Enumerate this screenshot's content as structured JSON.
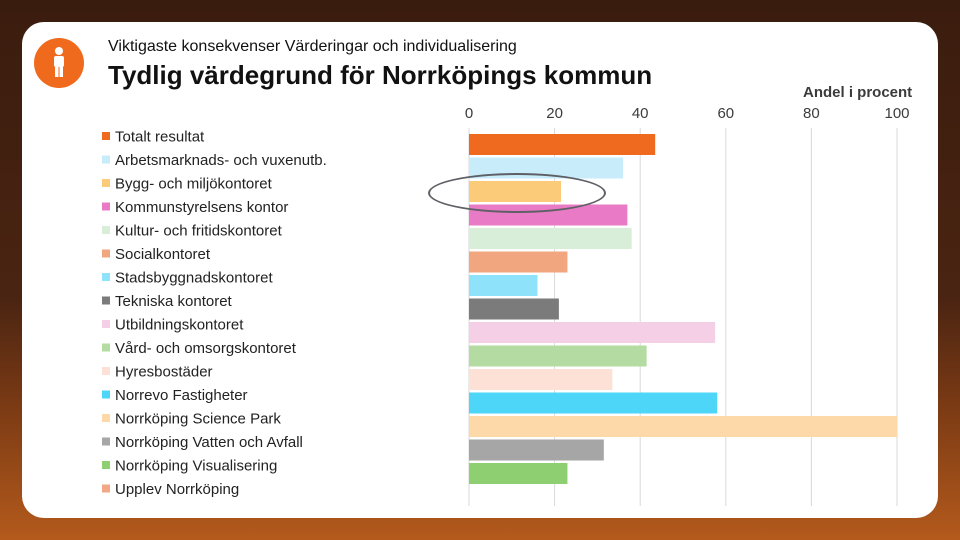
{
  "header": {
    "subtitle": "Viktigaste konsekvenser Värderingar och individualisering",
    "title": "Tydlig värdegrund för Norrköpings kommun",
    "logo_icon": "person-icon",
    "logo_color": "#ef6a1c"
  },
  "chart_data": {
    "type": "bar",
    "orientation": "horizontal",
    "title": "Tydlig värdegrund för Norrköpings kommun",
    "xlabel": "Andel i procent",
    "ylabel": "",
    "xlim": [
      0,
      100
    ],
    "xticks": [
      0,
      20,
      40,
      60,
      80,
      100
    ],
    "grid": true,
    "legend_position": "left",
    "categories": [
      "Totalt resultat",
      "Arbetsmarknads- och vuxenutb.",
      "Bygg- och miljökontoret",
      "Kommunstyrelsens kontor",
      "Kultur- och fritidskontoret",
      "Socialkontoret",
      "Stadsbyggnadskontoret",
      "Tekniska kontoret",
      "Utbildningskontoret",
      "Vård- och omsorgskontoret",
      "Hyresbostäder",
      "Norrevo Fastigheter",
      "Norrköping Science Park",
      "Norrköping Vatten och Avfall",
      "Norrköping Visualisering",
      "Upplev Norrköping"
    ],
    "values": [
      43.5,
      36,
      21.5,
      37,
      38,
      23,
      16,
      21,
      57.5,
      41.5,
      33.5,
      58,
      100,
      31.5,
      23,
      null
    ],
    "colors": [
      "#ef6a1f",
      "#c9ecfb",
      "#fccb7a",
      "#e97bc6",
      "#d9eed9",
      "#f2a680",
      "#8ee2fa",
      "#7b7b7b",
      "#f5cfe5",
      "#b4dca2",
      "#fde1d7",
      "#4dd6f8",
      "#fdd8a8",
      "#a6a6a6",
      "#8ecf71",
      "#f0a885"
    ],
    "annotation": "highlight-ellipse around Bygg- och miljökontoret"
  }
}
